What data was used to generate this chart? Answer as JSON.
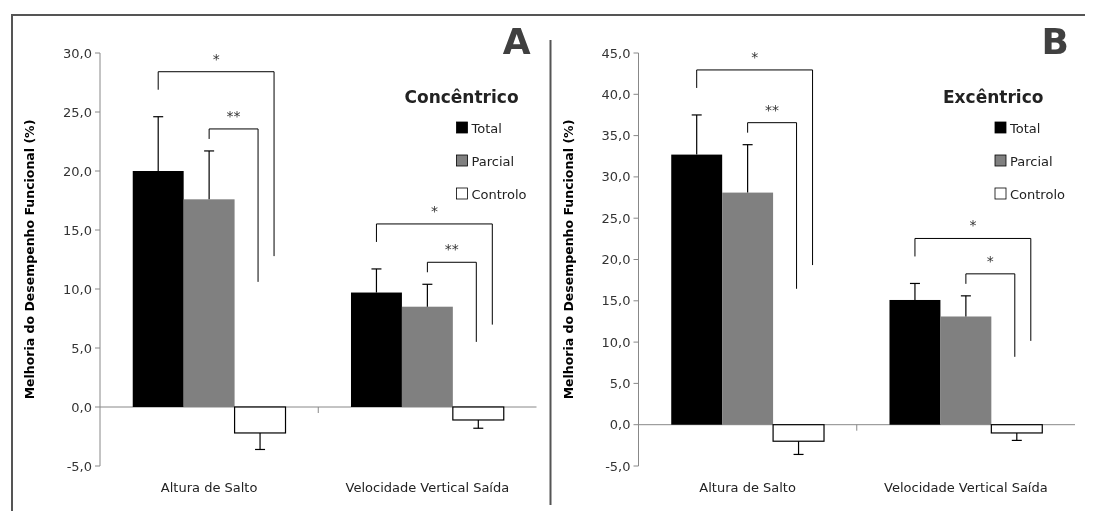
{
  "chart_data": [
    {
      "type": "bar",
      "title": "A",
      "ylabel": "Melhoria do Desempenho Funcional  (%)",
      "legend_title": "Concêntrico",
      "legend": "top right",
      "categories": [
        "Altura de Salto",
        "Velocidade Vertical Saída"
      ],
      "ylim": [
        -5,
        30
      ],
      "yticks": [
        {
          "value": -5,
          "label": "-5,0"
        },
        {
          "value": 0,
          "label": "0,0"
        },
        {
          "value": 5,
          "label": "5,0"
        },
        {
          "value": 10,
          "label": "10,0"
        },
        {
          "value": 15,
          "label": "15,0"
        },
        {
          "value": 20,
          "label": "20,0"
        },
        {
          "value": 25,
          "label": "25,0"
        },
        {
          "value": 30,
          "label": "30,0"
        }
      ],
      "series": [
        {
          "name": "Total",
          "color": "#000000",
          "values": [
            20.0,
            9.7
          ],
          "errors": [
            [
              20.0,
              24.6
            ],
            [
              9.7,
              11.7
            ]
          ]
        },
        {
          "name": "Parcial",
          "color": "#808080",
          "values": [
            17.6,
            8.5
          ],
          "errors": [
            [
              17.6,
              21.7
            ],
            [
              8.5,
              10.4
            ]
          ]
        },
        {
          "name": "Controlo",
          "color": "#ffffff",
          "values": [
            -2.2,
            -1.1
          ],
          "errors": [
            [
              -3.6,
              -2.2
            ],
            [
              -1.8,
              -1.1
            ]
          ]
        }
      ],
      "annotations": [
        "*",
        "**",
        "*",
        "**"
      ]
    },
    {
      "type": "bar",
      "title": "B",
      "ylabel": "Melhoria do Desempenho Funcional  (%)",
      "legend_title": "Excêntrico",
      "legend": "top right",
      "categories": [
        "Altura de Salto",
        "Velocidade Vertical Saída"
      ],
      "ylim": [
        -5,
        45
      ],
      "yticks": [
        {
          "value": -5,
          "label": "-5,0"
        },
        {
          "value": 0,
          "label": "0,0"
        },
        {
          "value": 5,
          "label": "5,0"
        },
        {
          "value": 10,
          "label": "10,0"
        },
        {
          "value": 15,
          "label": "15,0"
        },
        {
          "value": 20,
          "label": "20,0"
        },
        {
          "value": 25,
          "label": "25,0"
        },
        {
          "value": 30,
          "label": "30,0"
        },
        {
          "value": 35,
          "label": "35,0"
        },
        {
          "value": 40,
          "label": "40,0"
        },
        {
          "value": 45,
          "label": "45,0"
        }
      ],
      "series": [
        {
          "name": "Total",
          "color": "#000000",
          "values": [
            32.7,
            15.1
          ],
          "errors": [
            [
              32.7,
              37.5
            ],
            [
              15.1,
              17.1
            ]
          ]
        },
        {
          "name": "Parcial",
          "color": "#808080",
          "values": [
            28.1,
            13.1
          ],
          "errors": [
            [
              28.1,
              33.9
            ],
            [
              13.1,
              15.6
            ]
          ]
        },
        {
          "name": "Controlo",
          "color": "#ffffff",
          "values": [
            -2.0,
            -1.0
          ],
          "errors": [
            [
              -3.6,
              -2.0
            ],
            [
              -1.9,
              -1.0
            ]
          ]
        }
      ],
      "annotations": [
        "*",
        "**",
        "*",
        "*"
      ]
    }
  ]
}
